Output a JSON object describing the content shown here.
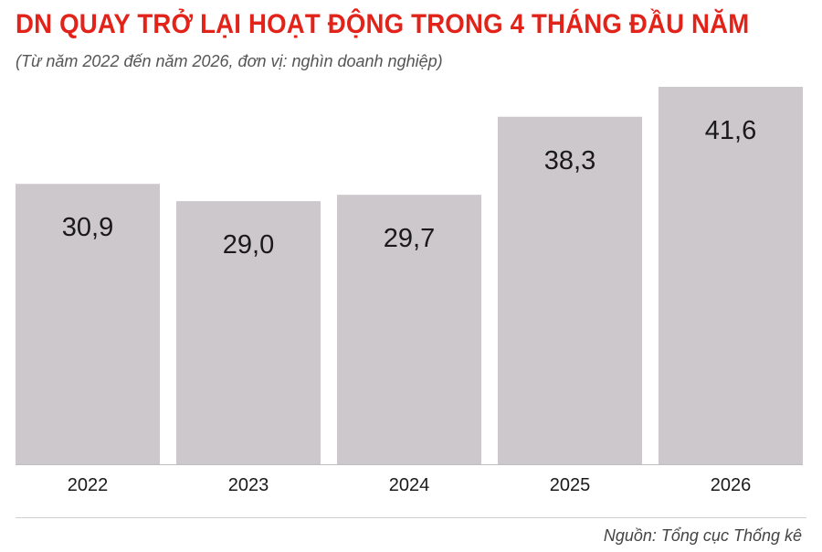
{
  "chart_data": {
    "type": "bar",
    "title": "DN QUAY TRỞ LẠI HOẠT ĐỘNG TRONG 4 THÁNG ĐẦU NĂM",
    "subtitle": "(Từ năm 2022 đến năm 2026, đơn vị: nghìn doanh nghiệp)",
    "categories": [
      "2022",
      "2023",
      "2024",
      "2025",
      "2026"
    ],
    "values": [
      30.9,
      29.0,
      29.7,
      38.3,
      41.6
    ],
    "value_labels": [
      "30,9",
      "29,0",
      "29,7",
      "38,3",
      "41,6"
    ],
    "xlabel": "",
    "ylabel": "",
    "ylim": [
      0,
      41.6
    ],
    "grid": false,
    "legend": "none",
    "bar_color": "#cdc8cc",
    "title_color": "#e2231a",
    "source": "Nguồn: Tổng cục Thống kê"
  }
}
